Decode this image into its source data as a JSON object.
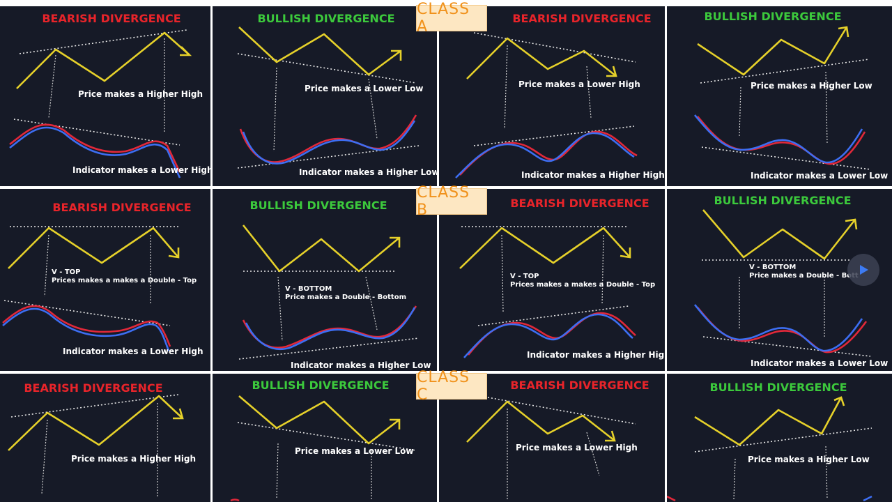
{
  "labels": {
    "bearish": "BEARISH DIVERGENCE",
    "bullish": "BULLISH DIVERGENCE",
    "higher_high": "Price makes a Higher High",
    "lower_low": "Price makes a Lower Low",
    "lower_high": "Price makes a Lower High",
    "higher_low": "Price makes a Higher Low",
    "ind_lower_high": "Indicator makes a Lower High",
    "ind_higher_low": "Indicator makes a Higher Low",
    "ind_higher_high": "Indicator makes a Higher High",
    "ind_lower_low": "Indicator makes a Lower Low",
    "v_top": "V - TOP",
    "v_top_desc": "Prices makes a makes a Double - Top",
    "v_bottom": "V - BOTTOM",
    "v_bottom_desc": "Price makes a Double - Bottom",
    "v_bottom_desc_short": "Price makes a Double - Bott"
  },
  "classes": [
    "CLASS A",
    "CLASS B",
    "CLASS C"
  ],
  "colors": {
    "background": "#161a27",
    "bearish_title": "#e8242a",
    "bullish_title": "#3cc93c",
    "price_line": "#e6d12a",
    "indicator_red": "#e2283a",
    "indicator_blue": "#3d6ef2",
    "badge_bg": "#fde7c2",
    "badge_text": "#f0911a"
  },
  "controls": {
    "play_icon": "play-icon"
  }
}
